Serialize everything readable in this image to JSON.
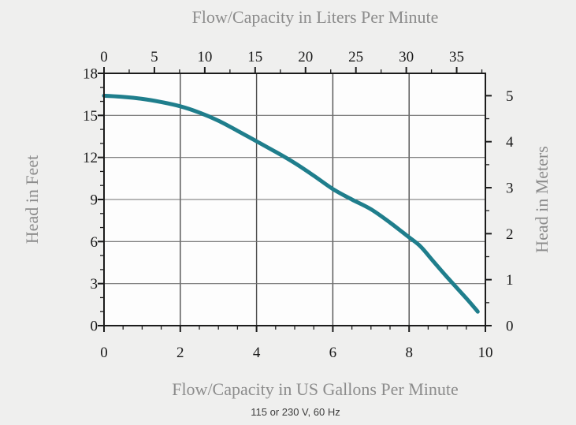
{
  "chart_data": {
    "type": "line",
    "title_top": "Flow/Capacity in Liters Per Minute",
    "title_bottom": "Flow/Capacity in US Gallons Per Minute",
    "ylabel_left": "Head in Feet",
    "ylabel_right": "Head in Meters",
    "caption": "115 or 230 V, 60 Hz",
    "grid": true,
    "legend": "none",
    "axes": {
      "bottom": {
        "label": "US Gallons Per Minute",
        "min": 0,
        "max": 10,
        "major_ticks": [
          0,
          2,
          4,
          6,
          8,
          10
        ],
        "minor_step": 0.5
      },
      "top": {
        "label": "Liters Per Minute",
        "min": 0,
        "max": 37.85,
        "major_ticks": [
          0,
          5,
          10,
          15,
          20,
          25,
          30,
          35
        ],
        "minor_step": 2.5
      },
      "left": {
        "label": "Head in Feet",
        "min": 0,
        "max": 18,
        "major_ticks": [
          0,
          3,
          6,
          9,
          12,
          15,
          18
        ],
        "minor_step": 1
      },
      "right": {
        "label": "Head in Meters",
        "min": 0,
        "max": 5.49,
        "major_ticks": [
          0,
          1,
          2,
          3,
          4,
          5
        ],
        "minor_step": 0.5,
        "ft_per_unit": 3.2808
      }
    },
    "series": [
      {
        "name": "pump performance curve",
        "color": "#1f7e8c",
        "stroke_width": 5,
        "x_gpm": [
          0,
          0.5,
          1,
          1.5,
          2,
          2.5,
          3,
          3.5,
          4,
          4.5,
          5,
          5.5,
          6,
          6.5,
          7,
          7.5,
          8,
          8.3,
          8.6,
          9,
          9.5,
          9.8
        ],
        "y_ft": [
          16.4,
          16.32,
          16.18,
          15.95,
          15.65,
          15.2,
          14.62,
          13.9,
          13.15,
          12.4,
          11.6,
          10.7,
          9.75,
          9.0,
          8.3,
          7.35,
          6.3,
          5.65,
          4.7,
          3.45,
          1.95,
          1.0
        ]
      }
    ],
    "colors": {
      "page_background": "#efefee",
      "plot_background": "#fdfdfd",
      "grid_vertical": "#4f4f4f",
      "grid_horizontal": "#6f6f6f",
      "axis_frame": "#1c1c1c",
      "tick_marks": "#1c1c1c",
      "tick_labels": "#1a1a1a",
      "axis_titles": "#8c8c8c",
      "caption_text": "#3c3c3c"
    }
  }
}
